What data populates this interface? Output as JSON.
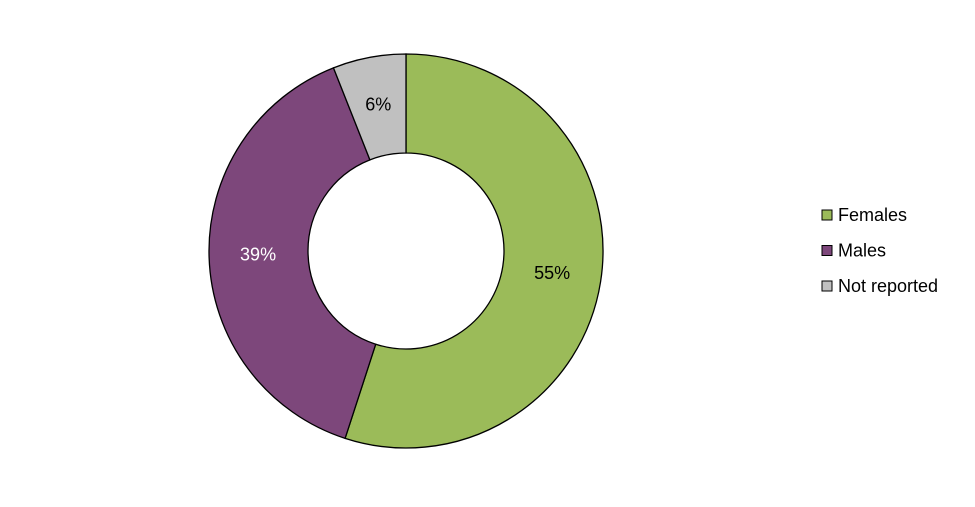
{
  "chart_data": {
    "type": "donut",
    "categories": [
      "Females",
      "Males",
      "Not reported"
    ],
    "values": [
      55,
      39,
      6
    ],
    "value_labels": [
      "55%",
      "39%",
      "6%"
    ],
    "colors": [
      "#9bbb59",
      "#7d477b",
      "#c0c0c0"
    ],
    "label_colors": [
      "#000000",
      "#ffffff",
      "#000000"
    ],
    "legend": "right"
  }
}
